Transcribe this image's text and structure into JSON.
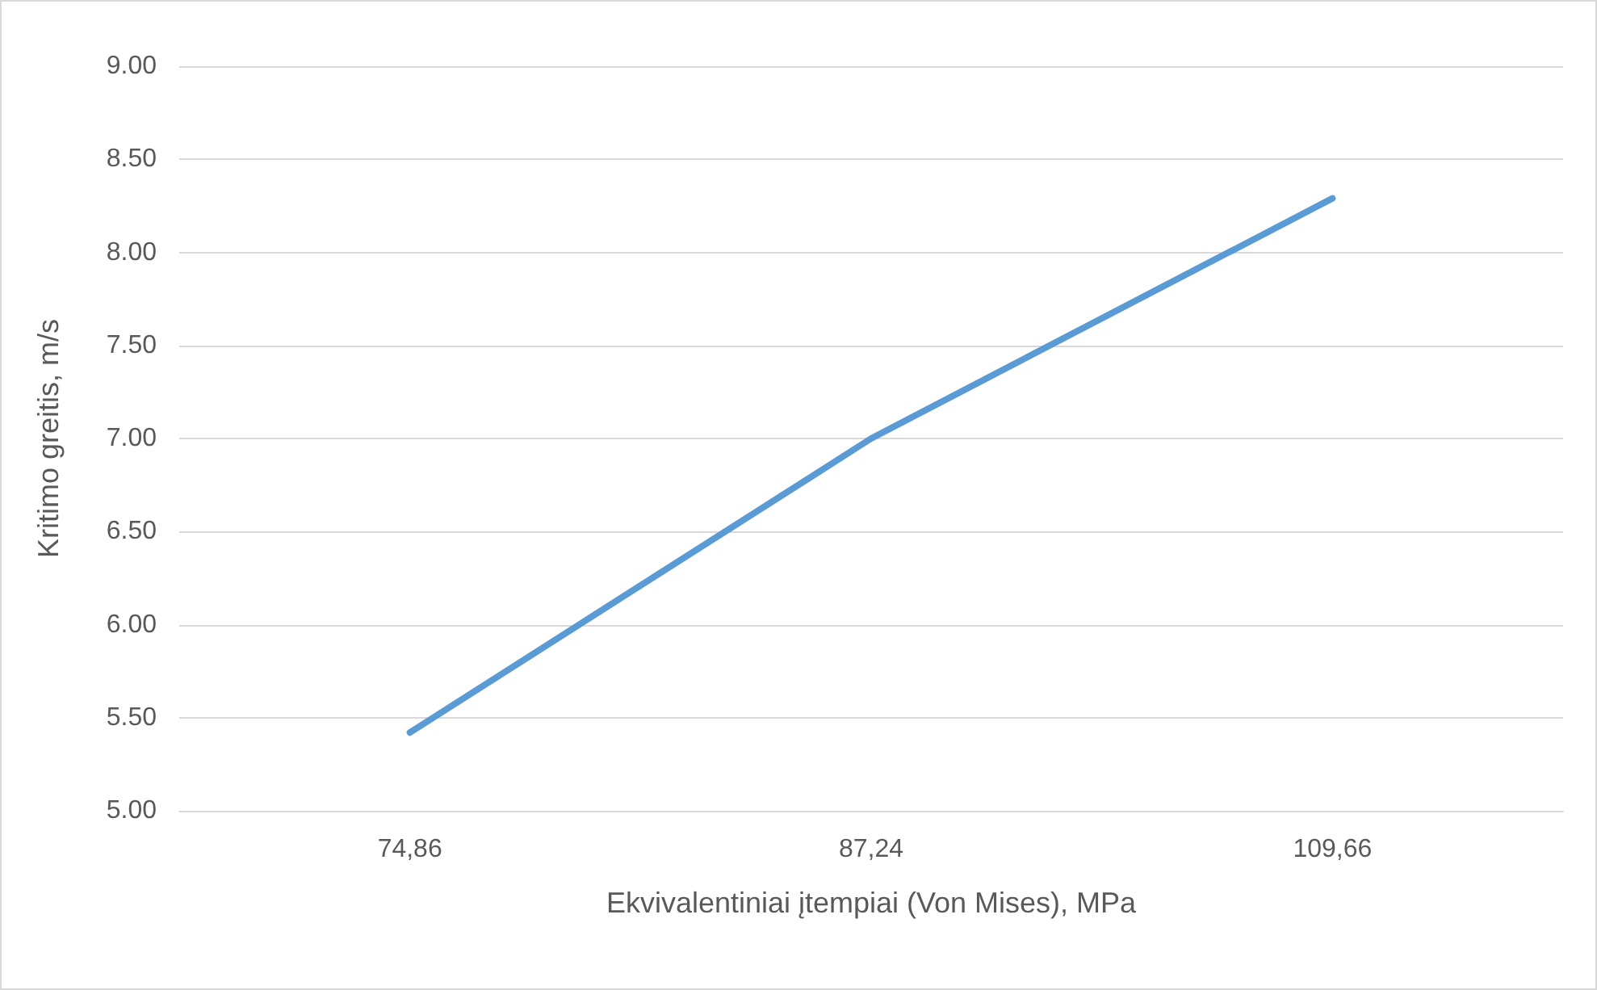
{
  "chart_data": {
    "type": "line",
    "xlabel": "Ekvivalentiniai įtempiai (Von Mises), MPa",
    "ylabel": "Kritimo greitis, m/s",
    "categories": [
      "74,86",
      "87,24",
      "109,66"
    ],
    "series": [
      {
        "color": "#5b9bd5",
        "values": [
          5.42,
          7.0,
          8.29
        ]
      }
    ],
    "ylim": [
      5,
      9
    ],
    "yticks": [
      {
        "value": 5,
        "label": "5.00"
      },
      {
        "value": 5.5,
        "label": "5.50"
      },
      {
        "value": 6,
        "label": "6.00"
      },
      {
        "value": 6.5,
        "label": "6.50"
      },
      {
        "value": 7,
        "label": "7.00"
      },
      {
        "value": 7.5,
        "label": "7.50"
      },
      {
        "value": 8,
        "label": "8.00"
      },
      {
        "value": 8.5,
        "label": "8.50"
      },
      {
        "value": 9,
        "label": "9.00"
      }
    ],
    "grid": "y",
    "marker": "none",
    "line_style": "solid"
  }
}
